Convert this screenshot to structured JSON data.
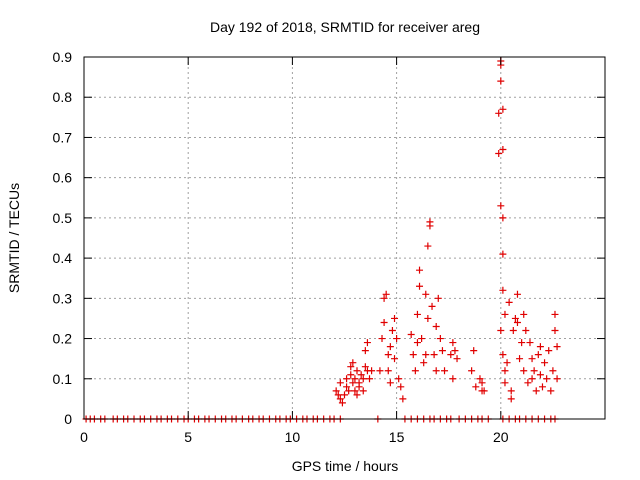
{
  "chart_data": {
    "type": "scatter",
    "title": "Day 192 of 2018, SRMTID for receiver areg",
    "xlabel": "GPS time / hours",
    "ylabel": "SRMTID / TECUs",
    "xlim": [
      0,
      25
    ],
    "ylim": [
      0,
      0.9
    ],
    "x_ticks": [
      0,
      5,
      10,
      15,
      20
    ],
    "x_tick_labels": [
      "0",
      "5",
      "10",
      "15",
      "20"
    ],
    "y_ticks": [
      0,
      0.1,
      0.2,
      0.3,
      0.4,
      0.5,
      0.6,
      0.7,
      0.8,
      0.9
    ],
    "y_tick_labels": [
      "0",
      "0.1",
      "0.2",
      "0.3",
      "0.4",
      "0.5",
      "0.6",
      "0.7",
      "0.8",
      "0.9"
    ],
    "grid": true,
    "marker": "+",
    "color": "#e00000",
    "series": [
      {
        "name": "SRMTID",
        "points": [
          [
            0.1,
            0
          ],
          [
            0.3,
            0
          ],
          [
            0.5,
            0
          ],
          [
            0.8,
            0
          ],
          [
            1.0,
            0
          ],
          [
            1.4,
            0
          ],
          [
            1.6,
            0
          ],
          [
            1.9,
            0
          ],
          [
            2.1,
            0
          ],
          [
            2.4,
            0
          ],
          [
            2.7,
            0
          ],
          [
            2.9,
            0
          ],
          [
            3.2,
            0
          ],
          [
            3.5,
            0
          ],
          [
            3.7,
            0
          ],
          [
            4.0,
            0
          ],
          [
            4.2,
            0
          ],
          [
            4.5,
            0
          ],
          [
            4.8,
            0
          ],
          [
            5.0,
            0
          ],
          [
            5.3,
            0
          ],
          [
            5.5,
            0
          ],
          [
            5.8,
            0
          ],
          [
            6.0,
            0
          ],
          [
            6.3,
            0
          ],
          [
            6.6,
            0
          ],
          [
            6.8,
            0
          ],
          [
            7.1,
            0
          ],
          [
            7.3,
            0
          ],
          [
            7.6,
            0
          ],
          [
            7.9,
            0
          ],
          [
            8.1,
            0
          ],
          [
            8.4,
            0
          ],
          [
            8.6,
            0
          ],
          [
            8.9,
            0
          ],
          [
            9.2,
            0
          ],
          [
            9.4,
            0
          ],
          [
            9.7,
            0
          ],
          [
            9.9,
            0
          ],
          [
            10.2,
            0
          ],
          [
            10.5,
            0
          ],
          [
            10.7,
            0
          ],
          [
            11.0,
            0
          ],
          [
            11.2,
            0
          ],
          [
            11.5,
            0
          ],
          [
            11.8,
            0
          ],
          [
            12.0,
            0
          ],
          [
            12.3,
            0
          ],
          [
            14.1,
            0
          ],
          [
            15.4,
            0
          ],
          [
            15.7,
            0
          ],
          [
            16.0,
            0
          ],
          [
            16.3,
            0
          ],
          [
            16.6,
            0
          ],
          [
            16.8,
            0
          ],
          [
            17.1,
            0
          ],
          [
            17.4,
            0
          ],
          [
            17.6,
            0
          ],
          [
            18.0,
            0
          ],
          [
            18.3,
            0
          ],
          [
            18.6,
            0
          ],
          [
            18.9,
            0
          ],
          [
            19.1,
            0
          ],
          [
            19.4,
            0
          ],
          [
            20.1,
            0
          ],
          [
            20.4,
            0
          ],
          [
            20.7,
            0
          ],
          [
            20.9,
            0
          ],
          [
            21.2,
            0
          ],
          [
            21.5,
            0
          ],
          [
            21.8,
            0
          ],
          [
            22.1,
            0
          ],
          [
            22.4,
            0
          ],
          [
            22.6,
            0
          ],
          [
            12.1,
            0.07
          ],
          [
            12.2,
            0.06
          ],
          [
            12.3,
            0.05
          ],
          [
            12.3,
            0.09
          ],
          [
            12.4,
            0.04
          ],
          [
            12.5,
            0.06
          ],
          [
            12.6,
            0.08
          ],
          [
            12.6,
            0.1
          ],
          [
            12.7,
            0.07
          ],
          [
            12.8,
            0.11
          ],
          [
            12.8,
            0.13
          ],
          [
            12.9,
            0.09
          ],
          [
            12.9,
            0.14
          ],
          [
            13.0,
            0.07
          ],
          [
            13.0,
            0.1
          ],
          [
            13.1,
            0.12
          ],
          [
            13.1,
            0.06
          ],
          [
            13.2,
            0.09
          ],
          [
            13.2,
            0.08
          ],
          [
            13.3,
            0.11
          ],
          [
            13.4,
            0.07
          ],
          [
            13.4,
            0.1
          ],
          [
            13.5,
            0.13
          ],
          [
            13.5,
            0.17
          ],
          [
            13.6,
            0.19
          ],
          [
            13.6,
            0.12
          ],
          [
            13.7,
            0.1
          ],
          [
            13.8,
            0.12
          ],
          [
            14.2,
            0.12
          ],
          [
            14.3,
            0.2
          ],
          [
            14.4,
            0.3
          ],
          [
            14.5,
            0.31
          ],
          [
            14.4,
            0.24
          ],
          [
            14.6,
            0.16
          ],
          [
            14.6,
            0.12
          ],
          [
            14.7,
            0.09
          ],
          [
            14.7,
            0.18
          ],
          [
            14.8,
            0.22
          ],
          [
            14.9,
            0.15
          ],
          [
            14.9,
            0.25
          ],
          [
            15.0,
            0.2
          ],
          [
            15.1,
            0.1
          ],
          [
            15.2,
            0.08
          ],
          [
            15.3,
            0.05
          ],
          [
            15.7,
            0.21
          ],
          [
            15.8,
            0.16
          ],
          [
            15.9,
            0.12
          ],
          [
            16.0,
            0.19
          ],
          [
            16.0,
            0.26
          ],
          [
            16.1,
            0.33
          ],
          [
            16.1,
            0.37
          ],
          [
            16.2,
            0.2
          ],
          [
            16.3,
            0.14
          ],
          [
            16.4,
            0.16
          ],
          [
            16.4,
            0.31
          ],
          [
            16.5,
            0.25
          ],
          [
            16.5,
            0.43
          ],
          [
            16.6,
            0.48
          ],
          [
            16.6,
            0.49
          ],
          [
            16.7,
            0.28
          ],
          [
            16.8,
            0.16
          ],
          [
            16.9,
            0.12
          ],
          [
            16.9,
            0.23
          ],
          [
            17.0,
            0.3
          ],
          [
            17.1,
            0.2
          ],
          [
            17.2,
            0.17
          ],
          [
            17.3,
            0.12
          ],
          [
            17.6,
            0.16
          ],
          [
            17.7,
            0.19
          ],
          [
            17.7,
            0.1
          ],
          [
            17.8,
            0.17
          ],
          [
            17.9,
            0.15
          ],
          [
            18.6,
            0.12
          ],
          [
            18.7,
            0.17
          ],
          [
            18.8,
            0.08
          ],
          [
            19.0,
            0.1
          ],
          [
            19.1,
            0.09
          ],
          [
            19.1,
            0.07
          ],
          [
            19.2,
            0.07
          ],
          [
            19.9,
            0.76
          ],
          [
            19.9,
            0.66
          ],
          [
            20.0,
            0.89
          ],
          [
            20.0,
            0.88
          ],
          [
            20.0,
            0.84
          ],
          [
            20.0,
            0.53
          ],
          [
            20.1,
            0.77
          ],
          [
            20.1,
            0.67
          ],
          [
            20.1,
            0.5
          ],
          [
            20.1,
            0.41
          ],
          [
            20.1,
            0.32
          ],
          [
            20.0,
            0.22
          ],
          [
            20.1,
            0.16
          ],
          [
            20.2,
            0.12
          ],
          [
            20.2,
            0.09
          ],
          [
            20.2,
            0.26
          ],
          [
            20.3,
            0.14
          ],
          [
            20.4,
            0.29
          ],
          [
            20.5,
            0.07
          ],
          [
            20.5,
            0.05
          ],
          [
            20.6,
            0.22
          ],
          [
            20.7,
            0.25
          ],
          [
            20.8,
            0.31
          ],
          [
            20.8,
            0.24
          ],
          [
            20.9,
            0.15
          ],
          [
            21.0,
            0.19
          ],
          [
            21.1,
            0.12
          ],
          [
            21.1,
            0.26
          ],
          [
            21.2,
            0.22
          ],
          [
            21.3,
            0.09
          ],
          [
            21.4,
            0.19
          ],
          [
            21.5,
            0.15
          ],
          [
            21.5,
            0.1
          ],
          [
            21.6,
            0.12
          ],
          [
            21.7,
            0.07
          ],
          [
            21.8,
            0.16
          ],
          [
            21.9,
            0.18
          ],
          [
            21.9,
            0.11
          ],
          [
            22.0,
            0.08
          ],
          [
            22.1,
            0.14
          ],
          [
            22.2,
            0.1
          ],
          [
            22.3,
            0.17
          ],
          [
            22.4,
            0.07
          ],
          [
            22.5,
            0.12
          ],
          [
            22.6,
            0.26
          ],
          [
            22.6,
            0.22
          ],
          [
            22.7,
            0.18
          ],
          [
            22.7,
            0.1
          ]
        ]
      }
    ]
  }
}
